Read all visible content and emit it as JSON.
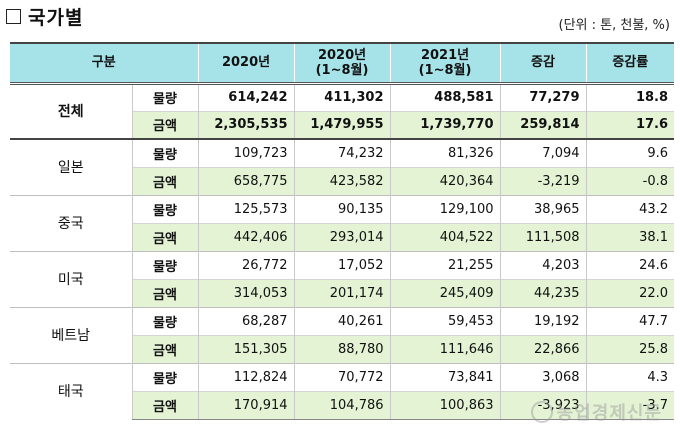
{
  "title": "국가별",
  "unit_note": "(단위 : 톤, 천불, %)",
  "watermark": "농업경제신문",
  "header": {
    "col_category": "구분",
    "col_2020": "2020년",
    "col_2020_ytd": [
      "2020년",
      "(1~8월)"
    ],
    "col_2021_ytd": [
      "2021년",
      "(1~8월)"
    ],
    "col_change": "증감",
    "col_rate": "증감률"
  },
  "rows": [
    {
      "country": "전체",
      "qty": {
        "label": "물량",
        "v2020": "614,242",
        "v2020ytd": "411,302",
        "v2021ytd": "488,581",
        "change": "77,279",
        "rate": "18.8"
      },
      "amt": {
        "label": "금액",
        "v2020": "2,305,535",
        "v2020ytd": "1,479,955",
        "v2021ytd": "1,739,770",
        "change": "259,814",
        "rate": "17.6"
      }
    },
    {
      "country": "일본",
      "qty": {
        "label": "물량",
        "v2020": "109,723",
        "v2020ytd": "74,232",
        "v2021ytd": "81,326",
        "change": "7,094",
        "rate": "9.6"
      },
      "amt": {
        "label": "금액",
        "v2020": "658,775",
        "v2020ytd": "423,582",
        "v2021ytd": "420,364",
        "change": "-3,219",
        "rate": "-0.8"
      }
    },
    {
      "country": "중국",
      "qty": {
        "label": "물량",
        "v2020": "125,573",
        "v2020ytd": "90,135",
        "v2021ytd": "129,100",
        "change": "38,965",
        "rate": "43.2"
      },
      "amt": {
        "label": "금액",
        "v2020": "442,406",
        "v2020ytd": "293,014",
        "v2021ytd": "404,522",
        "change": "111,508",
        "rate": "38.1"
      }
    },
    {
      "country": "미국",
      "qty": {
        "label": "물량",
        "v2020": "26,772",
        "v2020ytd": "17,052",
        "v2021ytd": "21,255",
        "change": "4,203",
        "rate": "24.6"
      },
      "amt": {
        "label": "금액",
        "v2020": "314,053",
        "v2020ytd": "201,174",
        "v2021ytd": "245,409",
        "change": "44,235",
        "rate": "22.0"
      }
    },
    {
      "country": "베트남",
      "qty": {
        "label": "물량",
        "v2020": "68,287",
        "v2020ytd": "40,261",
        "v2021ytd": "59,453",
        "change": "19,192",
        "rate": "47.7"
      },
      "amt": {
        "label": "금액",
        "v2020": "151,305",
        "v2020ytd": "88,780",
        "v2021ytd": "111,646",
        "change": "22,866",
        "rate": "25.8"
      }
    },
    {
      "country": "태국",
      "qty": {
        "label": "물량",
        "v2020": "112,824",
        "v2020ytd": "70,772",
        "v2021ytd": "73,841",
        "change": "3,068",
        "rate": "4.3"
      },
      "amt": {
        "label": "금액",
        "v2020": "170,914",
        "v2020ytd": "104,786",
        "v2021ytd": "100,863",
        "change": "-3,923",
        "rate": "-3.7"
      }
    }
  ]
}
